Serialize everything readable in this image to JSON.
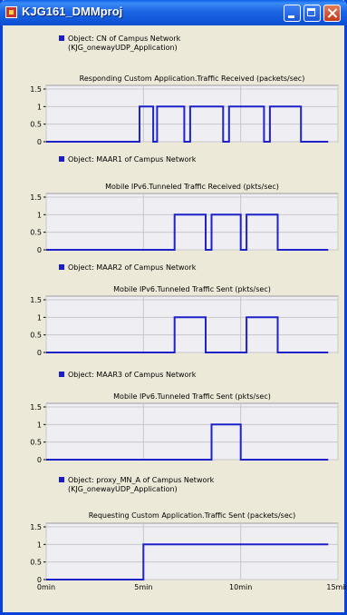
{
  "window": {
    "title": "KJG161_DMMproj"
  },
  "panels": [
    {
      "object": "Object: CN of Campus Network",
      "object_sub": "(KJG_onewayUDP_Application)"
    },
    {
      "object": "Object: MAAR1 of Campus Network",
      "object_sub": ""
    },
    {
      "object": "Object: MAAR2 of Campus Network",
      "object_sub": ""
    },
    {
      "object": "Object: MAAR3 of Campus Network",
      "object_sub": ""
    },
    {
      "object": "Object: proxy_MN_A of Campus Network",
      "object_sub": "(KJG_onewayUDP_Application)"
    }
  ],
  "colors": {
    "series": "#1e22c8",
    "plot_bg": "#efeff3",
    "grid": "#c8c8cc"
  },
  "chart_data": [
    {
      "type": "line",
      "title": "Responding Custom Application.Traffic Received (packets/sec)",
      "ylim": [
        0,
        1.5
      ],
      "xlim": [
        0,
        15
      ],
      "yticks": [
        "1.5",
        "1",
        "0.5",
        "0"
      ],
      "x": [
        0,
        4.8,
        4.8,
        5.5,
        5.5,
        5.7,
        5.7,
        7.1,
        7.1,
        7.4,
        7.4,
        9.1,
        9.1,
        9.4,
        9.4,
        11.2,
        11.2,
        11.5,
        11.5,
        13.1,
        13.1,
        14.5
      ],
      "y": [
        0,
        0,
        1,
        1,
        0,
        0,
        1,
        1,
        0,
        0,
        1,
        1,
        0,
        0,
        1,
        1,
        0,
        0,
        1,
        1,
        0,
        0
      ]
    },
    {
      "type": "line",
      "title": "Mobile IPv6.Tunneled Traffic Received (pkts/sec)",
      "ylim": [
        0,
        1.5
      ],
      "xlim": [
        0,
        15
      ],
      "yticks": [
        "1.5",
        "1",
        "0.5",
        "0"
      ],
      "x": [
        0,
        6.6,
        6.6,
        8.2,
        8.2,
        8.5,
        8.5,
        10.0,
        10.0,
        10.3,
        10.3,
        11.9,
        11.9,
        14.5
      ],
      "y": [
        0,
        0,
        1,
        1,
        0,
        0,
        1,
        1,
        0,
        0,
        1,
        1,
        0,
        0
      ]
    },
    {
      "type": "line",
      "title": "Mobile IPv6.Tunneled Traffic Sent (pkts/sec)",
      "ylim": [
        0,
        1.5
      ],
      "xlim": [
        0,
        15
      ],
      "yticks": [
        "1.5",
        "1",
        "0.5",
        "0"
      ],
      "x": [
        0,
        6.6,
        6.6,
        8.2,
        8.2,
        10.3,
        10.3,
        11.9,
        11.9,
        14.5
      ],
      "y": [
        0,
        0,
        1,
        1,
        0,
        0,
        1,
        1,
        0,
        0
      ]
    },
    {
      "type": "line",
      "title": "Mobile IPv6.Tunneled Traffic Sent (pkts/sec)",
      "ylim": [
        0,
        1.5
      ],
      "xlim": [
        0,
        15
      ],
      "yticks": [
        "1.5",
        "1",
        "0.5",
        "0"
      ],
      "x": [
        0,
        8.5,
        8.5,
        10.0,
        10.0,
        14.5
      ],
      "y": [
        0,
        0,
        1,
        1,
        0,
        0
      ]
    },
    {
      "type": "line",
      "title": "Requesting Custom Application.Traffic Sent (packets/sec)",
      "ylim": [
        0,
        1.5
      ],
      "xlim": [
        0,
        15
      ],
      "yticks": [
        "1.5",
        "1",
        "0.5",
        "0"
      ],
      "xticks": [
        "0min",
        "5min",
        "10min",
        "15min"
      ],
      "x": [
        0,
        5.0,
        5.0,
        14.5
      ],
      "y": [
        0,
        0,
        1,
        1
      ]
    }
  ]
}
